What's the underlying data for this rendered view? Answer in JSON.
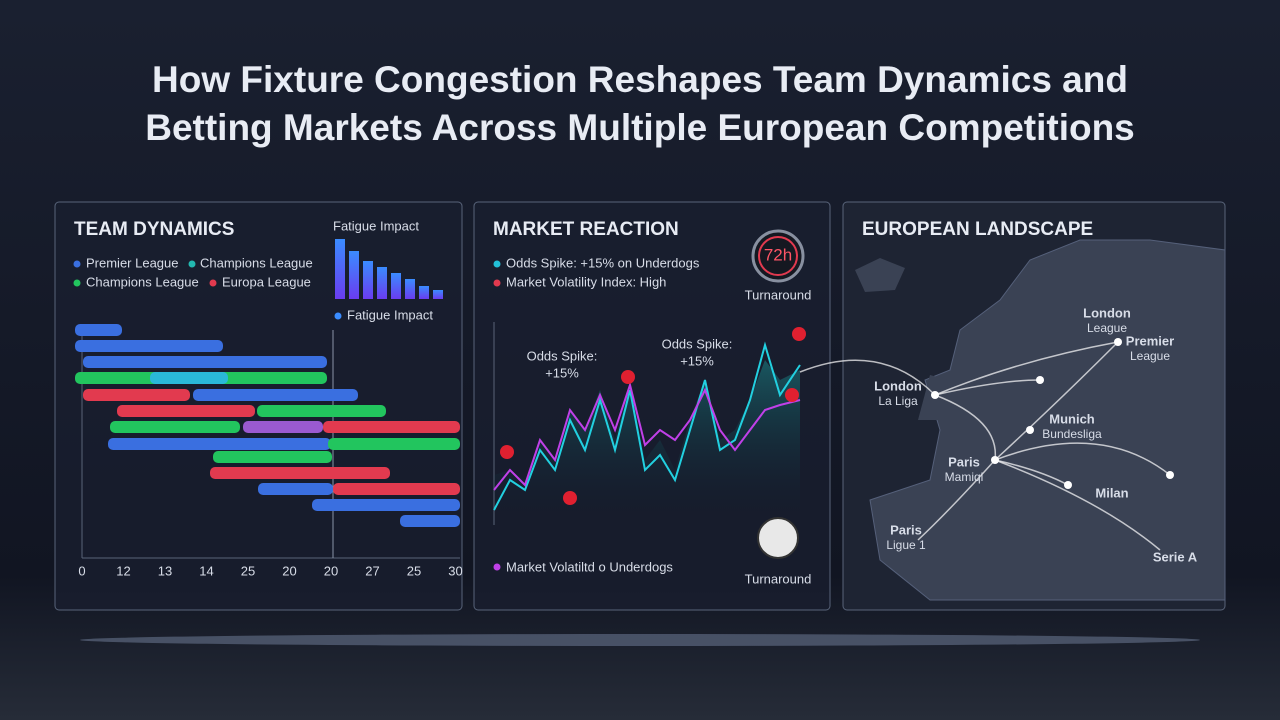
{
  "header": {
    "title_lines": [
      "How Fixture Congestion Reshapes Team Dynamics and",
      "Betting Markets Across Multiple European Competitions"
    ]
  },
  "panels": [
    {
      "title": "TEAM DYNAMICS",
      "legend": [
        "Premier League",
        "Champions League",
        "Champions League",
        "Europa League"
      ],
      "fatigue_title": "Fatigue Impact",
      "fatigue_legend": "Fatigue Impact",
      "axis_labels": [
        "0",
        "12",
        "13",
        "14",
        "25",
        "20",
        "20",
        "27",
        "25",
        "30"
      ]
    },
    {
      "title": "MARKET REACTION",
      "legend": [
        "Odds Spike: +15% on Underdogs",
        "Market Volatility Index: High"
      ],
      "timer": "72h",
      "timer_label": "Turnaround",
      "annotations": [
        [
          "Odds Spike:",
          "+15%"
        ],
        [
          "Odds Spike:",
          "+15%"
        ]
      ],
      "footer_legend": "Market Volatiltd o Underdogs",
      "footer_label": "Turnaround"
    },
    {
      "title": "EUROPEAN LANDSCAPE",
      "cities": [
        [
          "London",
          "League"
        ],
        [
          "Premier",
          "League"
        ],
        [
          "London",
          "La Liga"
        ],
        [
          "Munich",
          "Bundesliga"
        ],
        [
          "Paris",
          "Mamiql"
        ],
        [
          "Milan"
        ],
        [
          "Paris",
          "Ligue 1"
        ],
        [
          "Serie A"
        ]
      ]
    }
  ]
}
